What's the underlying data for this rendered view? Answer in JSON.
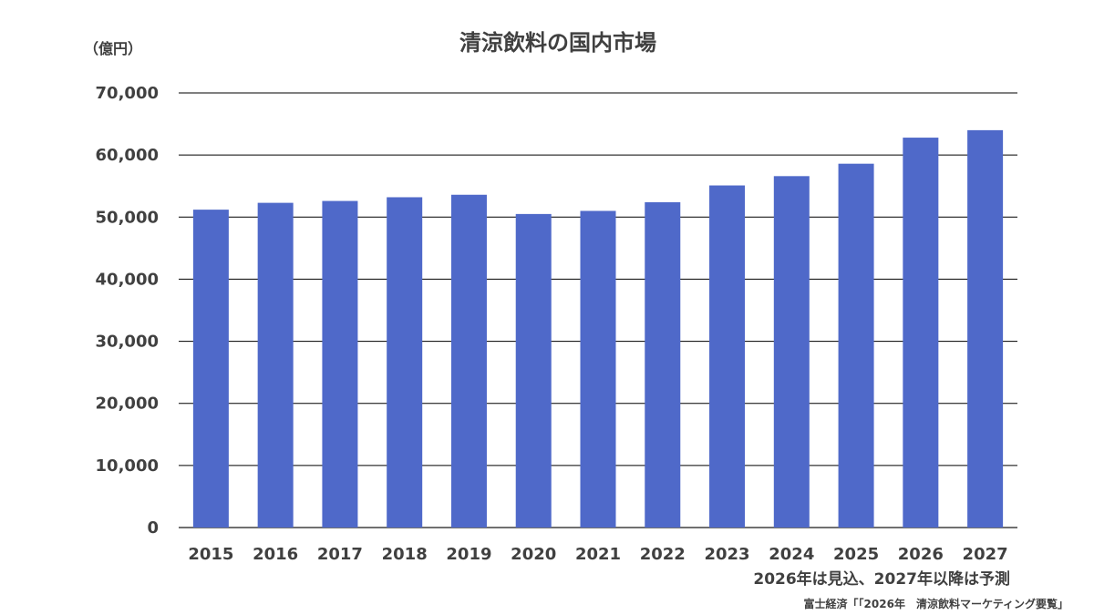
{
  "chart_data": {
    "type": "bar",
    "title": "清涼飲料の国内市場",
    "unit_label": "（億円）",
    "categories": [
      "2015",
      "2016",
      "2017",
      "2018",
      "2019",
      "2020",
      "2021",
      "2022",
      "2023",
      "2024",
      "2025",
      "2026",
      "2027"
    ],
    "values": [
      51200,
      52300,
      52600,
      53200,
      53600,
      50500,
      51000,
      52400,
      55100,
      56600,
      58600,
      62800,
      64000
    ],
    "ylim": [
      0,
      70000
    ],
    "yticks": [
      0,
      10000,
      20000,
      30000,
      40000,
      50000,
      60000,
      70000
    ],
    "ytick_labels": [
      "0",
      "10,000",
      "20,000",
      "30,000",
      "40,000",
      "50,000",
      "60,000",
      "70,000"
    ],
    "grid": true,
    "bar_color": "#4f69c9",
    "note": "2026年は見込、2027年以降は予測",
    "source": "富士経済「「2026年　清涼飲料マーケティング要覧」"
  }
}
